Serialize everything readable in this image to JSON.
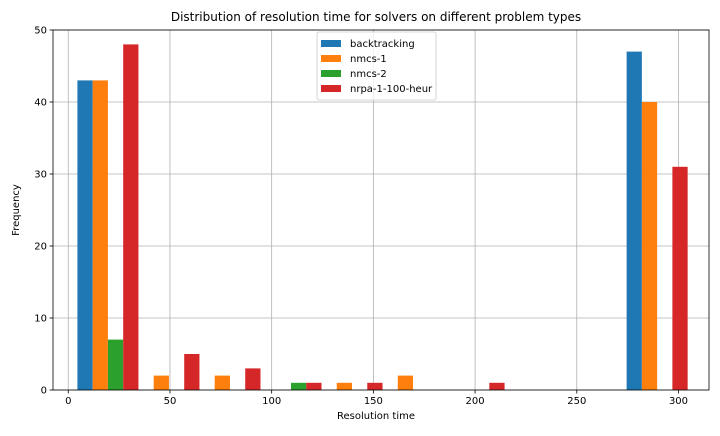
{
  "chart_data": {
    "type": "bar",
    "title": "Distribution of resolution time for solvers on different problem types",
    "xlabel": "Resolution time",
    "ylabel": "Frequency",
    "xlim": [
      -7.5,
      315
    ],
    "ylim": [
      0,
      50
    ],
    "xticks": [
      0,
      50,
      100,
      150,
      200,
      250,
      300
    ],
    "yticks": [
      0,
      10,
      20,
      30,
      40,
      50
    ],
    "grid": true,
    "legend_position": "top-center",
    "bin_edges": [
      4.5,
      34.5,
      64.5,
      94.5,
      124.5,
      154.5,
      184.5,
      214.5,
      244.5,
      274.5,
      304.5
    ],
    "series": [
      {
        "name": "backtracking",
        "color": "#1f77b4",
        "values": [
          43,
          0,
          0,
          0,
          0,
          0,
          0,
          0,
          0,
          47
        ]
      },
      {
        "name": "nmcs-1",
        "color": "#ff7f0e",
        "values": [
          43,
          2,
          2,
          0,
          1,
          2,
          0,
          0,
          0,
          40
        ]
      },
      {
        "name": "nmcs-2",
        "color": "#2ca02c",
        "values": [
          7,
          0,
          0,
          1,
          0,
          0,
          0,
          0,
          0,
          0
        ]
      },
      {
        "name": "nrpa-1-100-heur",
        "color": "#d62728",
        "values": [
          48,
          5,
          3,
          1,
          1,
          0,
          1,
          0,
          0,
          31
        ]
      }
    ]
  }
}
